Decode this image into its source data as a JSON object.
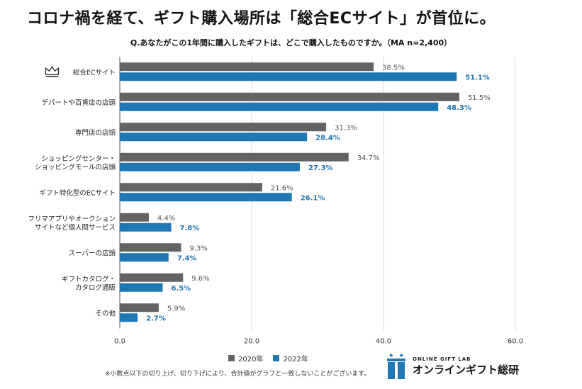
{
  "headline": "コロナ禍を経て、ギフト購入場所は「総合ECサイト」が首位に。",
  "colors": {
    "series_2020": "#636363",
    "series_2022": "#1f77b4",
    "grid": "#dddddd",
    "label_2020": "#555555",
    "label_2022": "#1f77b4"
  },
  "crown_icon": "crown-icon",
  "chart_data": {
    "type": "bar",
    "orientation": "horizontal",
    "title": "Q.あなたがこの1年間に購入したギフトは、どこで購入したものですか。（MA n=2,400）",
    "categories": [
      [
        "総合ECサイト"
      ],
      [
        "デパートや百貨店の店頭"
      ],
      [
        "専門店の店頭"
      ],
      [
        "ショッピングセンター・",
        "ショッピングモールの店頭"
      ],
      [
        "ギフト特化型のECサイト"
      ],
      [
        "フリマアプリやオークション",
        "サイトなど個人間サービス"
      ],
      [
        "スーパーの店頭"
      ],
      [
        "ギフトカタログ・",
        "カタログ通販"
      ],
      [
        "その他"
      ]
    ],
    "series": [
      {
        "name": "2020年",
        "values": [
          38.5,
          51.5,
          31.3,
          34.7,
          21.6,
          4.4,
          9.3,
          9.6,
          5.9
        ],
        "labels": [
          "38.5%",
          "51.5%",
          "31.3%",
          "34.7%",
          "21.6%",
          "4.4%",
          "9.3%",
          "9.6%",
          "5.9%"
        ]
      },
      {
        "name": "2022年",
        "values": [
          51.1,
          48.3,
          28.4,
          27.3,
          26.1,
          7.8,
          7.4,
          6.5,
          2.7
        ],
        "labels": [
          "51.1%",
          "48.3%",
          "28.4%",
          "27.3%",
          "26.1%",
          "7.8%",
          "7.4%",
          "6.5%",
          "2.7%"
        ]
      }
    ],
    "xlim": [
      0,
      60
    ],
    "xticks": [
      0,
      20,
      40,
      60
    ],
    "xtick_labels": [
      "0.0",
      "20.0",
      "40.0",
      "60.0"
    ],
    "grid": true,
    "legend": "bottom"
  },
  "footnote": "※小数点以下の切り上げ、切り下げにより、合計値がグラフと一致しないことがございます。",
  "logo": {
    "sub": "ONLINE GIFT LAB",
    "main": "オンラインギフト総研",
    "icon": "gift-box-icon"
  }
}
